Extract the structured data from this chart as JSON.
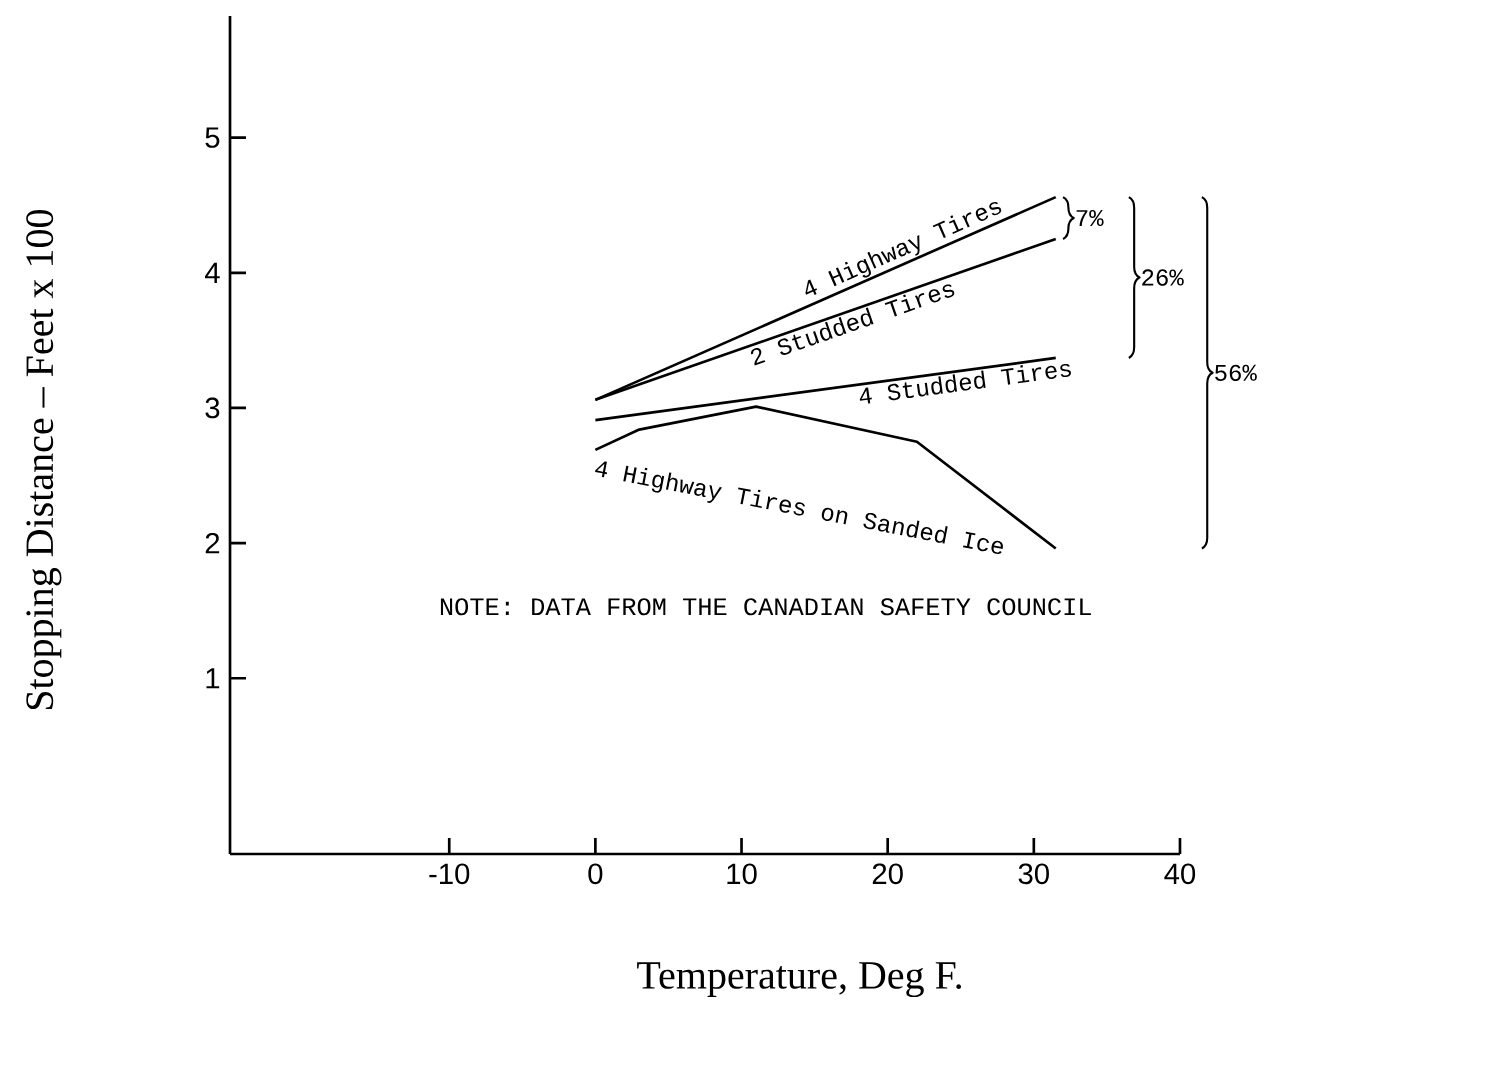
{
  "chart_data": {
    "type": "line",
    "xlabel": "Temperature, Deg F.",
    "ylabel": "Stopping Distance – Feet x 100",
    "xlim": [
      -25,
      40
    ],
    "ylim": [
      -0.3,
      5.9
    ],
    "xticks": [
      -10,
      0,
      10,
      20,
      30,
      40
    ],
    "yticks": [
      1,
      2,
      3,
      4,
      5
    ],
    "grid": false,
    "marker": "none",
    "line_style": "solid",
    "series": [
      {
        "name": "4 Highway Tires",
        "color": "#000000",
        "x": [
          0,
          31.5
        ],
        "values": [
          3.06,
          4.56
        ]
      },
      {
        "name": "2 Studded Tires",
        "color": "#000000",
        "x": [
          0,
          31.5
        ],
        "values": [
          3.06,
          4.25
        ]
      },
      {
        "name": "4 Studded Tires",
        "color": "#000000",
        "x": [
          0,
          31.5
        ],
        "values": [
          2.91,
          3.37
        ]
      },
      {
        "name": "4 Highway Tires on Sanded Ice",
        "color": "#000000",
        "x": [
          0,
          3,
          11,
          22,
          31.5
        ],
        "values": [
          2.69,
          2.84,
          3.01,
          2.75,
          1.96
        ]
      }
    ],
    "annotations": [
      "7%",
      "26%",
      "56%",
      "NOTE:  DATA FROM THE CANADIAN SAFETY COUNCIL"
    ]
  }
}
